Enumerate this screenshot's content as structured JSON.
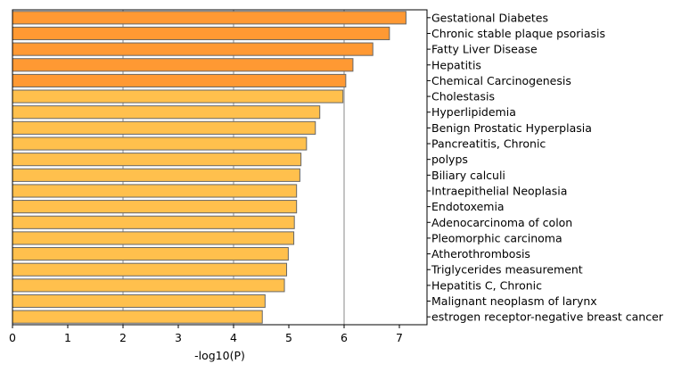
{
  "chart_data": {
    "type": "bar",
    "orientation": "horizontal",
    "title": "",
    "xlabel": "-log10(P)",
    "ylabel": "",
    "xlim": [
      0,
      7.5
    ],
    "xticks": [
      0,
      1,
      2,
      3,
      4,
      5,
      6,
      7
    ],
    "grid": "vertical gridlines at 2, 4, 6",
    "bar_edge_color": "#666666",
    "categories": [
      "Gestational Diabetes",
      "Chronic stable plaque psoriasis",
      "Fatty Liver Disease",
      "Hepatitis",
      "Chemical Carcinogenesis",
      "Cholestasis",
      "Hyperlipidemia",
      "Benign Prostatic Hyperplasia",
      "Pancreatitis, Chronic",
      "polyps",
      "Biliary calculi",
      "Intraepithelial Neoplasia",
      "Endotoxemia",
      "Adenocarcinoma of colon",
      "Pleomorphic carcinoma",
      "Atherothrombosis",
      "Triglycerides measurement",
      "Hepatitis C, Chronic",
      "Malignant neoplasm of larynx",
      "estrogen receptor-negative breast cancer"
    ],
    "values": [
      7.12,
      6.82,
      6.52,
      6.16,
      6.03,
      5.98,
      5.56,
      5.48,
      5.32,
      5.22,
      5.2,
      5.14,
      5.14,
      5.1,
      5.09,
      4.99,
      4.96,
      4.92,
      4.57,
      4.52
    ],
    "colors": [
      "#FF9933",
      "#FF9933",
      "#FF9933",
      "#FF9933",
      "#FF9933",
      "#FFC04D",
      "#FFC04D",
      "#FFC04D",
      "#FFC04D",
      "#FFC04D",
      "#FFC04D",
      "#FFC04D",
      "#FFC04D",
      "#FFC04D",
      "#FFC04D",
      "#FFC04D",
      "#FFC04D",
      "#FFC04D",
      "#FFC04D",
      "#FFC04D"
    ]
  }
}
